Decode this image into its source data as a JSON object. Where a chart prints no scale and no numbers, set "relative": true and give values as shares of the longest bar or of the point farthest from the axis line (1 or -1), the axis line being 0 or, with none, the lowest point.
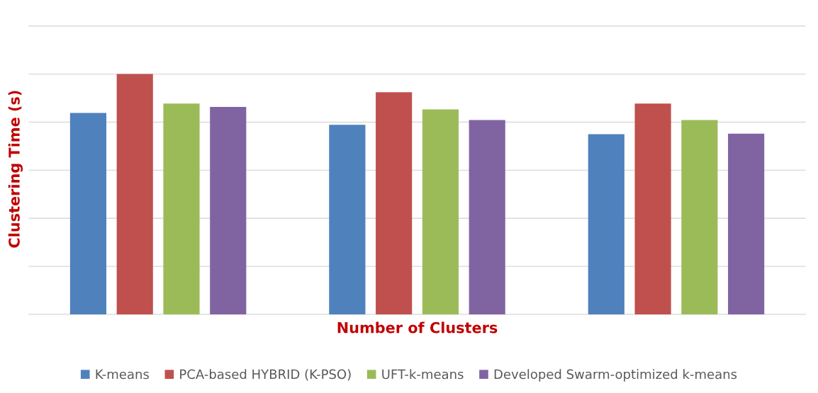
{
  "chart_data": {
    "type": "bar",
    "relative": true,
    "xlabel": "Number of Clusters",
    "ylabel": "Clustering Time (s)",
    "categories": [
      null,
      null,
      null
    ],
    "series": [
      {
        "name": "K-means",
        "color": "#4f81bd",
        "values": [
          0.838,
          0.789,
          0.75
        ]
      },
      {
        "name": "PCA-based HYBRID (K-PSO)",
        "color": "#c0504d",
        "values": [
          1,
          0.924,
          0.877
        ]
      },
      {
        "name": "UFT-k-means",
        "color": "#9bbb59",
        "values": [
          0.877,
          0.853,
          0.809
        ]
      },
      {
        "name": "Developed Swarm-optimized k-means",
        "color": "#8064a2",
        "values": [
          0.863,
          0.809,
          0.752
        ]
      }
    ],
    "grid": "y",
    "legend": "bottom"
  }
}
